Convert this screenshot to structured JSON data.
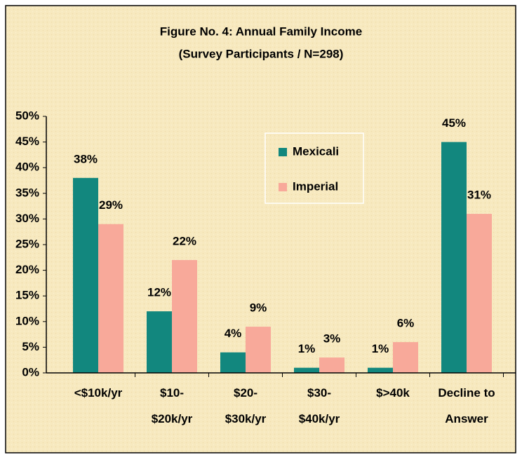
{
  "chart_data": {
    "type": "bar",
    "title": "Figure No. 4:  Annual Family Income",
    "subtitle": "(Survey Participants / N=298)",
    "categories": [
      "<$10k/yr",
      "$10-\n$20k/yr",
      "$20-\n$30k/yr",
      "$30-\n$40k/yr",
      "$>40k",
      "Decline to\nAnswer"
    ],
    "series": [
      {
        "name": "Mexicali",
        "color": "#12877e",
        "values": [
          38,
          12,
          4,
          1,
          1,
          45
        ],
        "value_labels": [
          "38%",
          "12%",
          "4%",
          "1%",
          "1%",
          "45%"
        ]
      },
      {
        "name": "Imperial",
        "color": "#f8a99a",
        "values": [
          29,
          22,
          9,
          3,
          6,
          31
        ],
        "value_labels": [
          "29%",
          "22%",
          "9%",
          "3%",
          "6%",
          "31%"
        ]
      }
    ],
    "ylim": [
      0,
      50
    ],
    "yticks": [
      {
        "value": 0,
        "label": "0%"
      },
      {
        "value": 5,
        "label": "5%"
      },
      {
        "value": 10,
        "label": "10%"
      },
      {
        "value": 15,
        "label": "15%"
      },
      {
        "value": 20,
        "label": "20%"
      },
      {
        "value": 25,
        "label": "25%"
      },
      {
        "value": 30,
        "label": "30%"
      },
      {
        "value": 35,
        "label": "35%"
      },
      {
        "value": 40,
        "label": "40%"
      },
      {
        "value": 45,
        "label": "45%"
      },
      {
        "value": 50,
        "label": "50%"
      }
    ],
    "grid": false
  }
}
